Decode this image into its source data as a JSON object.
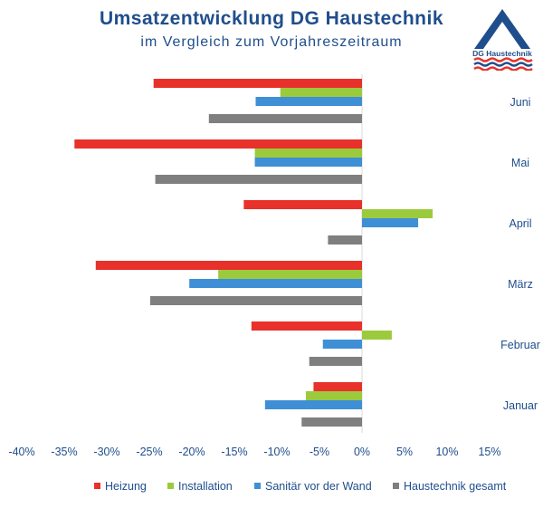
{
  "chart_data": {
    "type": "bar",
    "orientation": "horizontal",
    "title": "Umsatzentwicklung DG Haustechnik",
    "subtitle": "im Vergleich zum Vorjahreszeitraum",
    "categories": [
      "Juni",
      "Mai",
      "April",
      "März",
      "Februar",
      "Januar"
    ],
    "series": [
      {
        "name": "Heizung",
        "color": "#e8312a",
        "values": [
          -24.5,
          -33.8,
          -13.9,
          -31.3,
          -13.0,
          -5.7
        ]
      },
      {
        "name": "Installation",
        "color": "#9bcb3c",
        "values": [
          -9.6,
          -12.6,
          8.3,
          -16.9,
          3.5,
          -6.6
        ]
      },
      {
        "name": "Sanitär vor der Wand",
        "color": "#3f8fd6",
        "values": [
          -12.5,
          -12.6,
          6.6,
          -20.3,
          -4.6,
          -11.4
        ]
      },
      {
        "name": "Haustechnik gesamt",
        "color": "#7f7f7f",
        "values": [
          -18.0,
          -24.3,
          -4.0,
          -24.9,
          -6.2,
          -7.1
        ]
      }
    ],
    "xlim": [
      -40,
      15
    ],
    "xticks": [
      "-40%",
      "-35%",
      "-30%",
      "-25%",
      "-20%",
      "-15%",
      "-10%",
      "-5%",
      "0%",
      "5%",
      "10%",
      "15%"
    ],
    "tick_values": [
      -40,
      -35,
      -30,
      -25,
      -20,
      -15,
      -10,
      -5,
      0,
      5,
      10,
      15
    ],
    "legend": "bottom",
    "grid": false
  },
  "logo": {
    "text": "DG Haustechnik"
  },
  "colors": {
    "text": "#1f4e8c"
  }
}
